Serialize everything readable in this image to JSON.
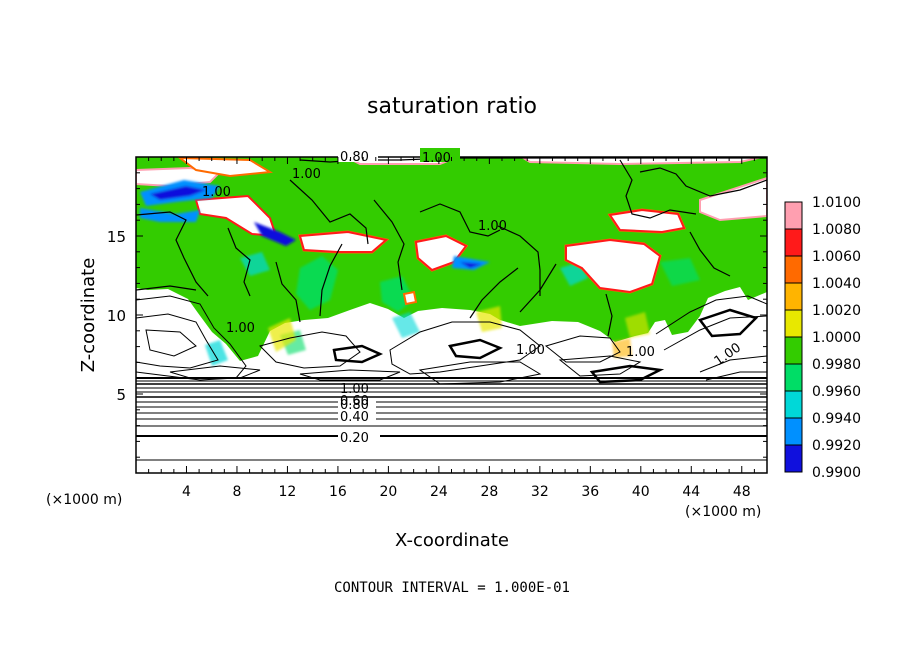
{
  "chart_data": {
    "type": "heatmap",
    "title": "saturation ratio",
    "xlabel": "X-coordinate",
    "ylabel": "Z-coordinate",
    "x_unit": "(×1000 m)",
    "z_unit": "(×1000 m)",
    "xlim": [
      0,
      50
    ],
    "ylim": [
      0,
      20
    ],
    "x_ticks": [
      "4",
      "8",
      "12",
      "16",
      "20",
      "24",
      "28",
      "32",
      "36",
      "40",
      "44",
      "48"
    ],
    "y_ticks": [
      "5",
      "10",
      "15"
    ],
    "footer": "CONTOUR INTERVAL = 1.000E-01",
    "colorbar": {
      "levels": [
        "1.0100",
        "1.0080",
        "1.0060",
        "1.0040",
        "1.0020",
        "1.0000",
        "0.9980",
        "0.9960",
        "0.9940",
        "0.9920",
        "0.9900"
      ],
      "colors": [
        "#ff9fb0",
        "#ff1a1a",
        "#ff6a00",
        "#ffb400",
        "#e8e800",
        "#33cc00",
        "#00dd66",
        "#00d8d8",
        "#0090ff",
        "#1010dd",
        "#6a00b0"
      ]
    },
    "contour_labels": [
      "0.80",
      "1.00",
      "1.00",
      "1.00",
      "1.00",
      "1.00",
      "1.00",
      "1.00",
      "1.00",
      "1.00",
      "0.80",
      "0.60",
      "0.40",
      "0.20"
    ],
    "lower_contour_levels": [
      0.2,
      0.4,
      0.6,
      0.8,
      1.0
    ]
  }
}
